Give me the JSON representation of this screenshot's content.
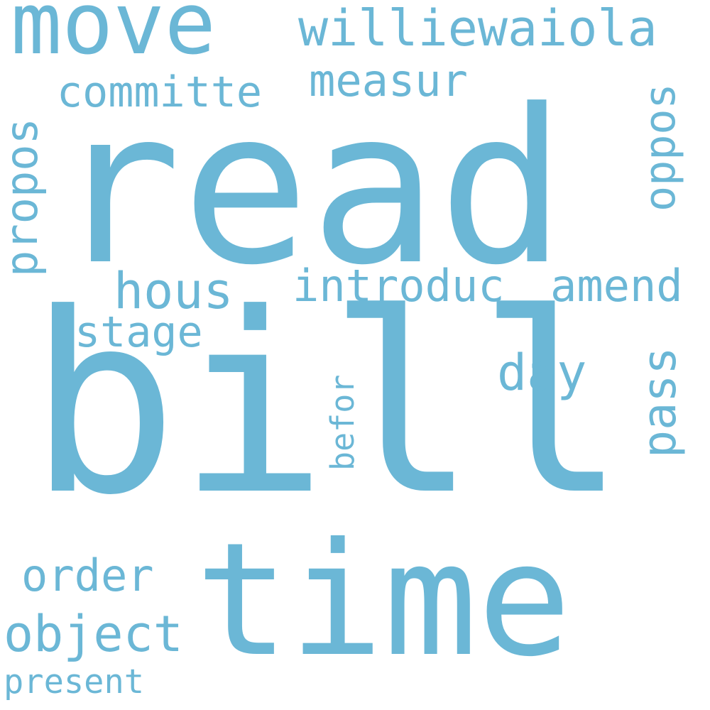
{
  "word_cloud": {
    "color": "#6bb7d6",
    "words": {
      "read": "read",
      "bill": "bill",
      "time": "time",
      "move": "move",
      "williewaiola": "williewaiola",
      "measur": "measur",
      "committe": "committe",
      "oppos": "oppos",
      "propos": "propos",
      "hous": "hous",
      "introduc": "introduc",
      "amend": "amend",
      "stage": "stage",
      "day": "day",
      "pass": "pass",
      "befor": "befor",
      "order": "order",
      "object": "object",
      "present": "present"
    }
  }
}
